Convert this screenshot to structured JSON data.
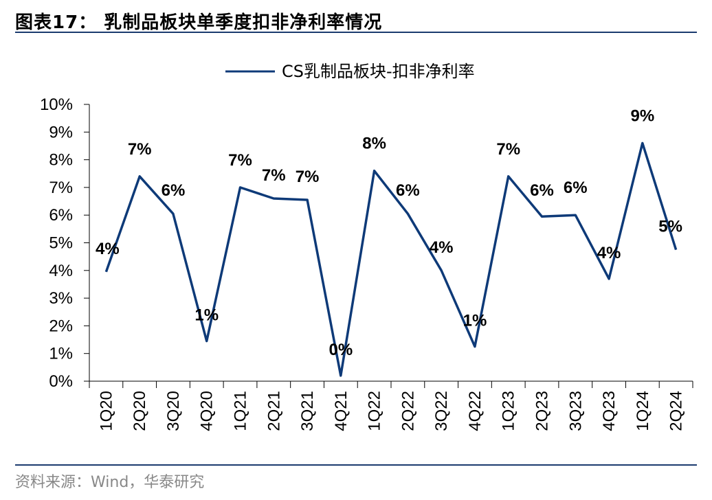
{
  "figure": {
    "title": "图表17：  乳制品板块单季度扣非净利率情况",
    "source": "资料来源：Wind，华泰研究"
  },
  "colors": {
    "series": "#0e3a78",
    "rule": "#1a3a6e"
  },
  "chart_data": {
    "type": "line",
    "title": "",
    "xlabel": "",
    "ylabel": "",
    "ylim": [
      0,
      10
    ],
    "y_ticks": [
      "0%",
      "1%",
      "2%",
      "3%",
      "4%",
      "5%",
      "6%",
      "7%",
      "8%",
      "9%",
      "10%"
    ],
    "legend_position": "top-center",
    "grid": false,
    "categories": [
      "1Q20",
      "2Q20",
      "3Q20",
      "4Q20",
      "1Q21",
      "2Q21",
      "3Q21",
      "4Q21",
      "1Q22",
      "2Q22",
      "3Q22",
      "4Q22",
      "1Q23",
      "2Q23",
      "3Q23",
      "4Q23",
      "1Q24",
      "2Q24"
    ],
    "series": [
      {
        "name": "CS乳制品板块-扣非净利率",
        "values": [
          3.95,
          7.4,
          6.05,
          1.45,
          7.0,
          6.6,
          6.55,
          0.2,
          7.6,
          6.05,
          4.0,
          1.25,
          7.4,
          5.95,
          6.0,
          3.7,
          8.6,
          4.75
        ],
        "data_labels": [
          "4%",
          "7%",
          "6%",
          "1%",
          "7%",
          "7%",
          "7%",
          "0%",
          "8%",
          "6%",
          "4%",
          "1%",
          "7%",
          "6%",
          "6%",
          "4%",
          "9%",
          "5%"
        ]
      }
    ]
  }
}
